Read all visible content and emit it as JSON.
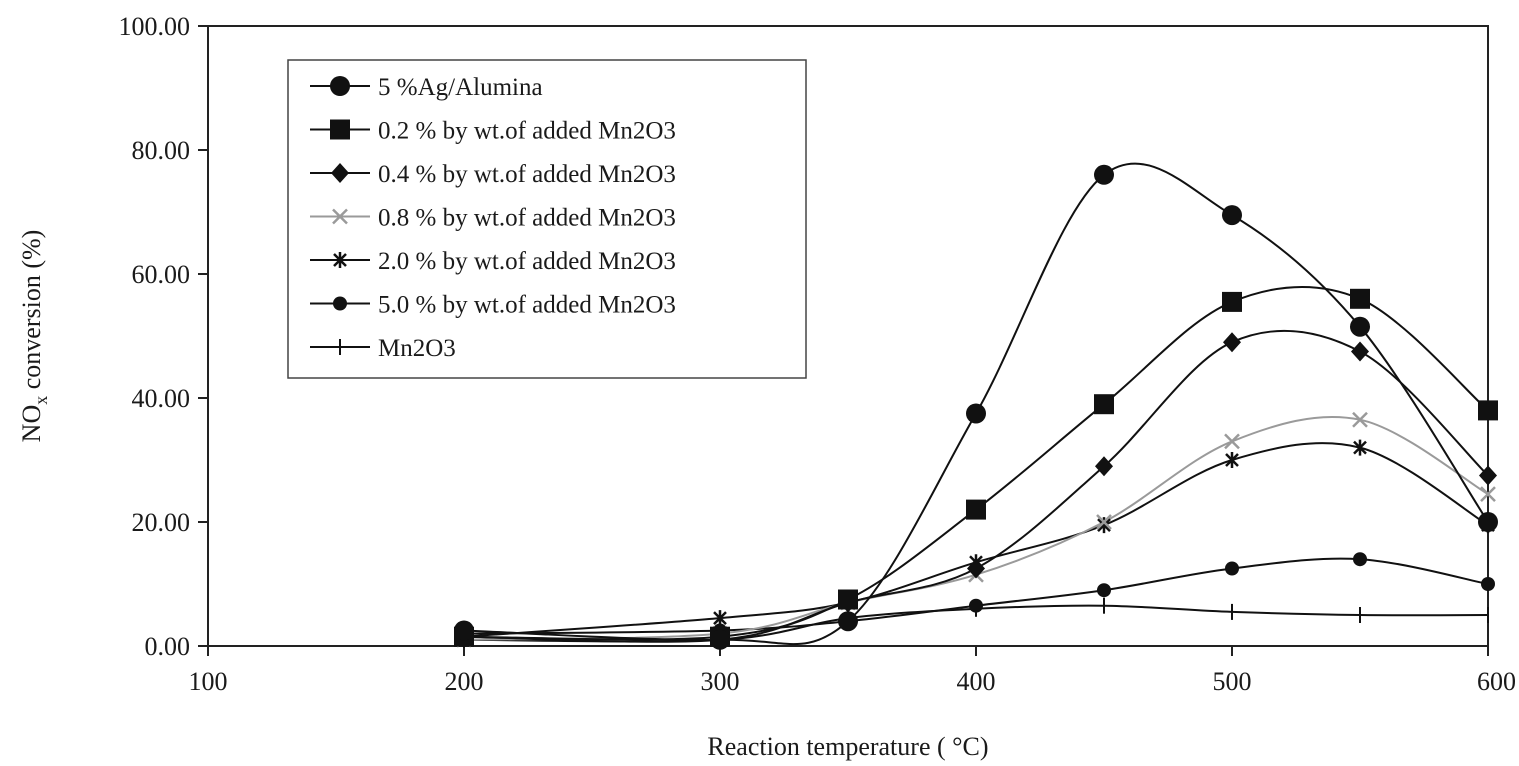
{
  "chart_data": {
    "type": "line",
    "title": "",
    "xlabel_main": "Reaction temperature ( ",
    "xlabel_unit": "°C",
    "xlabel_end": ")",
    "ylabel_main": "NO",
    "ylabel_sub": "x",
    "ylabel_end": " conversion (%)",
    "xlim": [
      100,
      600
    ],
    "ylim": [
      0,
      100
    ],
    "x_ticks": [
      100,
      200,
      300,
      400,
      500,
      600
    ],
    "x_tick_labels": [
      "100",
      "200",
      "300",
      "400",
      "500",
      "600"
    ],
    "y_ticks": [
      0,
      20,
      40,
      60,
      80,
      100
    ],
    "y_tick_labels": [
      "0.00",
      "20.00",
      "40.00",
      "60.00",
      "80.00",
      "100.00"
    ],
    "grid": false,
    "legend_position": "top-left",
    "series": [
      {
        "name": "5 %Ag/Alumina",
        "marker": "circle-large",
        "color": "#111111",
        "x": [
          200,
          300,
          350,
          400,
          450,
          500,
          550,
          600
        ],
        "y": [
          2.5,
          1.0,
          4.0,
          37.5,
          76.0,
          69.5,
          51.5,
          20.0
        ]
      },
      {
        "name": "0.2 % by wt.of added Mn2O3",
        "marker": "square",
        "color": "#111111",
        "x": [
          200,
          300,
          350,
          400,
          450,
          500,
          550,
          600
        ],
        "y": [
          1.5,
          1.5,
          7.5,
          22.0,
          39.0,
          55.5,
          56.0,
          38.0
        ]
      },
      {
        "name": "0.4 % by wt.of added Mn2O3",
        "marker": "diamond",
        "color": "#111111",
        "x": [
          200,
          300,
          350,
          400,
          450,
          500,
          550,
          600
        ],
        "y": [
          1.5,
          1.0,
          7.0,
          12.5,
          29.0,
          49.0,
          47.5,
          27.5
        ]
      },
      {
        "name": "0.8 % by wt.of added Mn2O3",
        "marker": "x",
        "color": "#9a9a9a",
        "x": [
          200,
          300,
          350,
          400,
          450,
          500,
          550,
          600
        ],
        "y": [
          1.0,
          2.0,
          7.0,
          11.5,
          20.0,
          33.0,
          36.5,
          24.5
        ]
      },
      {
        "name": "2.0 % by wt.of added Mn2O3",
        "marker": "asterisk",
        "color": "#111111",
        "x": [
          200,
          300,
          350,
          400,
          450,
          500,
          550,
          600
        ],
        "y": [
          1.5,
          4.5,
          7.0,
          13.5,
          19.5,
          30.0,
          32.0,
          19.5
        ]
      },
      {
        "name": "5.0 % by wt.of added Mn2O3",
        "marker": "circle-small",
        "color": "#111111",
        "x": [
          200,
          300,
          350,
          400,
          450,
          500,
          550,
          600
        ],
        "y": [
          2.0,
          2.5,
          4.0,
          6.5,
          9.0,
          12.5,
          14.0,
          10.0
        ]
      },
      {
        "name": "Mn2O3",
        "marker": "plus",
        "color": "#111111",
        "x": [
          200,
          300,
          350,
          400,
          450,
          500,
          550,
          600
        ],
        "y": [
          1.0,
          1.0,
          4.5,
          6.0,
          6.5,
          5.5,
          5.0,
          5.0
        ]
      }
    ]
  }
}
